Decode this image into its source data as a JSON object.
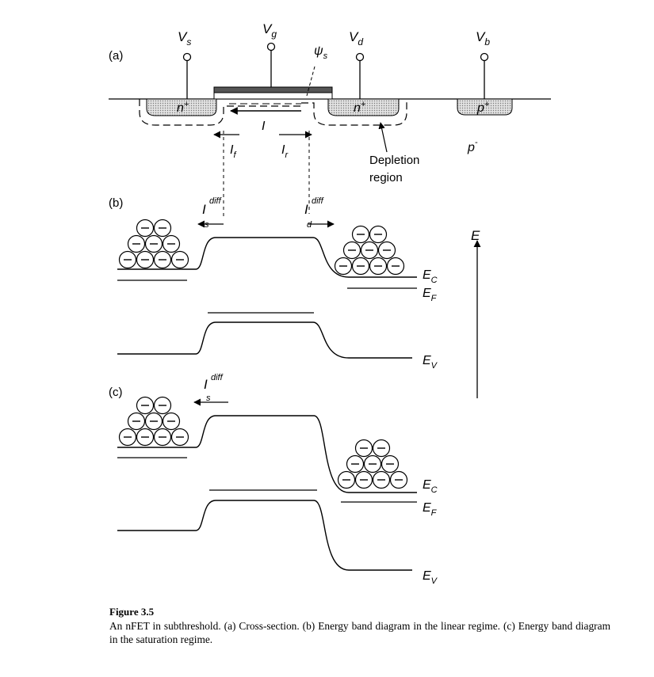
{
  "panels": {
    "a": "(a)",
    "b": "(b)",
    "c": "(c)"
  },
  "terminals": {
    "source": {
      "base": "V",
      "sub": "s"
    },
    "gate": {
      "base": "V",
      "sub": "g"
    },
    "drain": {
      "base": "V",
      "sub": "d"
    },
    "body": {
      "base": "V",
      "sub": "b"
    }
  },
  "cross_section": {
    "surface_potential": {
      "base": "ψ",
      "sub": "s"
    },
    "source_region": {
      "base": "n",
      "sup": "+"
    },
    "drain_region": {
      "base": "n",
      "sup": "+"
    },
    "body_contact": {
      "base": "p",
      "sup": "+"
    },
    "substrate": {
      "base": "p",
      "sup": "-"
    },
    "channel_current": "I",
    "forward_current": {
      "base": "I",
      "sub": "f"
    },
    "reverse_current": {
      "base": "I",
      "sub": "r"
    },
    "depletion_label_line1": "Depletion",
    "depletion_label_line2": "region"
  },
  "band_diagrams": {
    "source_diffusion": {
      "base": "I",
      "sub": "s",
      "sup": "diff"
    },
    "drain_diffusion": {
      "base": "I",
      "sub": "d",
      "sup": "diff"
    },
    "energy_axis": "E",
    "conduction_band": {
      "base": "E",
      "sub": "C"
    },
    "fermi_level": {
      "base": "E",
      "sub": "F"
    },
    "valence_band": {
      "base": "E",
      "sub": "V"
    },
    "electron_symbol": "—"
  },
  "caption": {
    "title": "Figure 3.5",
    "text": "An nFET in subthreshold. (a) Cross-section. (b) Energy band diagram in the linear regime. (c) Energy band diagram in the saturation regime."
  }
}
